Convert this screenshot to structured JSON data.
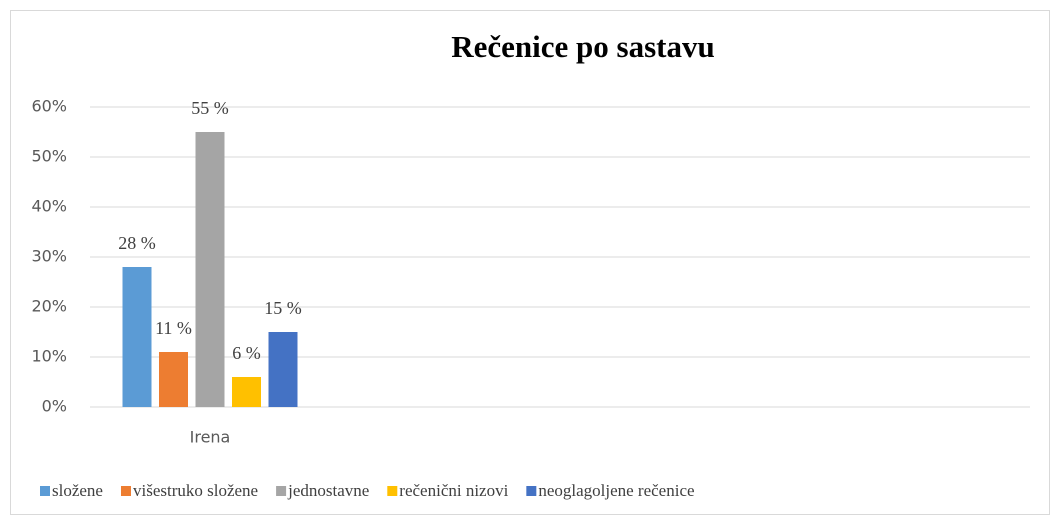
{
  "chart_data": {
    "type": "bar",
    "title": "Rečenice po sastavu",
    "categories": [
      "Irena"
    ],
    "series": [
      {
        "name": "složene",
        "color": "#5b9bd5",
        "values": [
          28
        ],
        "value_labels": [
          "28 %"
        ]
      },
      {
        "name": "višestruko složene",
        "color": "#ed7d31",
        "values": [
          11
        ],
        "value_labels": [
          "11 %"
        ]
      },
      {
        "name": "jednostavne",
        "color": "#a5a5a5",
        "values": [
          55
        ],
        "value_labels": [
          "55 %"
        ]
      },
      {
        "name": "rečenični nizovi",
        "color": "#ffc000",
        "values": [
          6
        ],
        "value_labels": [
          "6 %"
        ]
      },
      {
        "name": "neoglagoljene rečenice",
        "color": "#4472c4",
        "values": [
          15
        ],
        "value_labels": [
          "15 %"
        ]
      }
    ],
    "ylim": [
      0,
      60
    ],
    "yticks": [
      {
        "value": 0,
        "label": "0%"
      },
      {
        "value": 10,
        "label": "10%"
      },
      {
        "value": 20,
        "label": "20%"
      },
      {
        "value": 30,
        "label": "30%"
      },
      {
        "value": 40,
        "label": "40%"
      },
      {
        "value": 50,
        "label": "50%"
      },
      {
        "value": 60,
        "label": "60%"
      }
    ],
    "grid": true,
    "legend": "bottom"
  }
}
